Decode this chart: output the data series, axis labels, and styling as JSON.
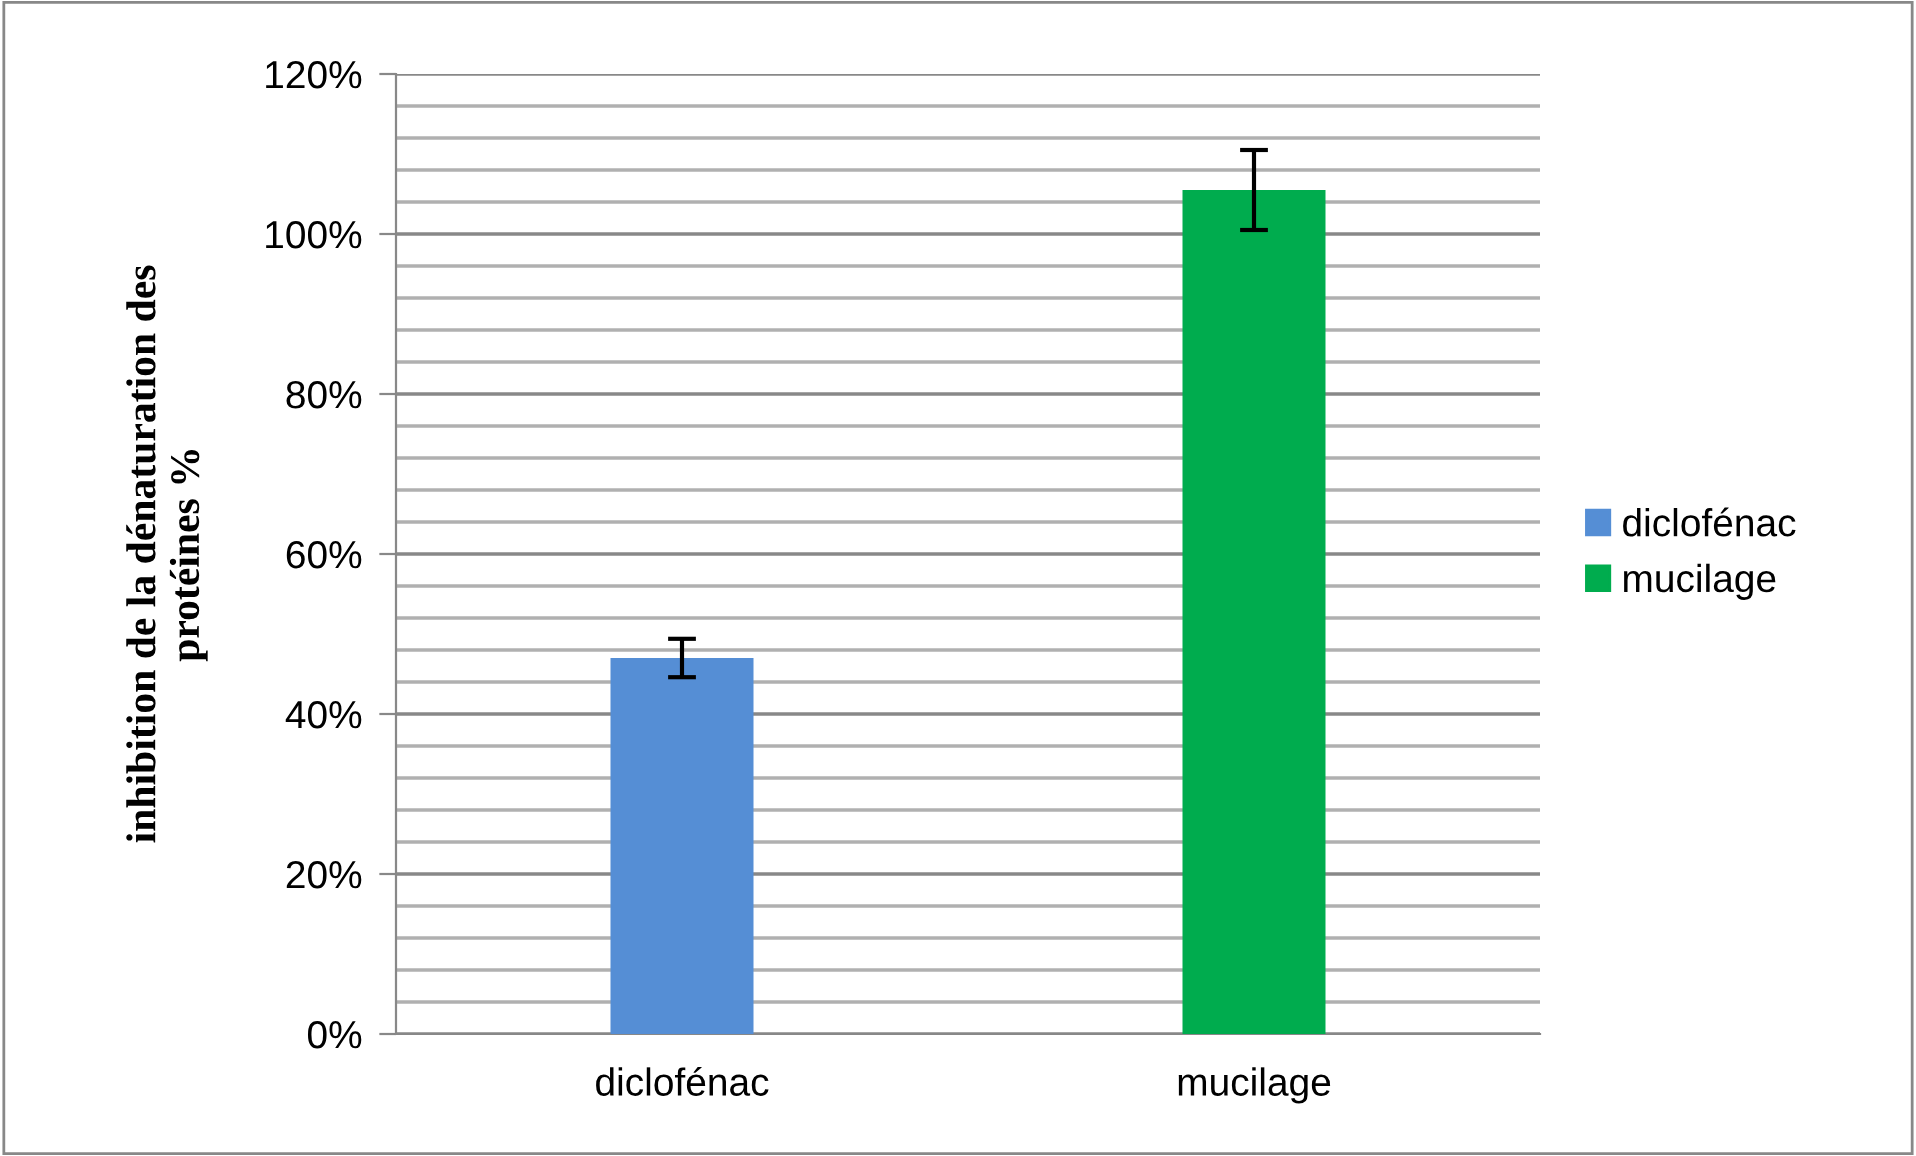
{
  "chart_data": {
    "type": "bar",
    "ylabel": "inhibition de la dénaturation des\nprotéines %",
    "categories": [
      "diclofénac",
      "mucilage"
    ],
    "series": [
      {
        "name": "diclofénac",
        "color": "#558ed5",
        "values": [
          47,
          null
        ],
        "errors": [
          2.4,
          null
        ]
      },
      {
        "name": "mucilage",
        "color": "#00ac4e",
        "values": [
          null,
          105.5
        ],
        "errors": [
          null,
          5
        ]
      }
    ],
    "ylim": [
      0,
      120
    ],
    "yticks": [
      {
        "value": 0,
        "label": "0%"
      },
      {
        "value": 4,
        "label": null
      },
      {
        "value": 8,
        "label": null
      },
      {
        "value": 12,
        "label": null
      },
      {
        "value": 16,
        "label": null
      },
      {
        "value": 20,
        "label": "20%"
      },
      {
        "value": 24,
        "label": null
      },
      {
        "value": 28,
        "label": null
      },
      {
        "value": 32,
        "label": null
      },
      {
        "value": 36,
        "label": null
      },
      {
        "value": 40,
        "label": "40%"
      },
      {
        "value": 44,
        "label": null
      },
      {
        "value": 48,
        "label": null
      },
      {
        "value": 52,
        "label": null
      },
      {
        "value": 56,
        "label": null
      },
      {
        "value": 60,
        "label": "60%"
      },
      {
        "value": 64,
        "label": null
      },
      {
        "value": 68,
        "label": null
      },
      {
        "value": 72,
        "label": null
      },
      {
        "value": 76,
        "label": null
      },
      {
        "value": 80,
        "label": "80%"
      },
      {
        "value": 84,
        "label": null
      },
      {
        "value": 88,
        "label": null
      },
      {
        "value": 92,
        "label": null
      },
      {
        "value": 96,
        "label": null
      },
      {
        "value": 100,
        "label": "100%"
      },
      {
        "value": 104,
        "label": null
      },
      {
        "value": 108,
        "label": null
      },
      {
        "value": 112,
        "label": null
      },
      {
        "value": 116,
        "label": null
      },
      {
        "value": 120,
        "label": "120%"
      }
    ],
    "grid": "y",
    "legend": "right"
  }
}
